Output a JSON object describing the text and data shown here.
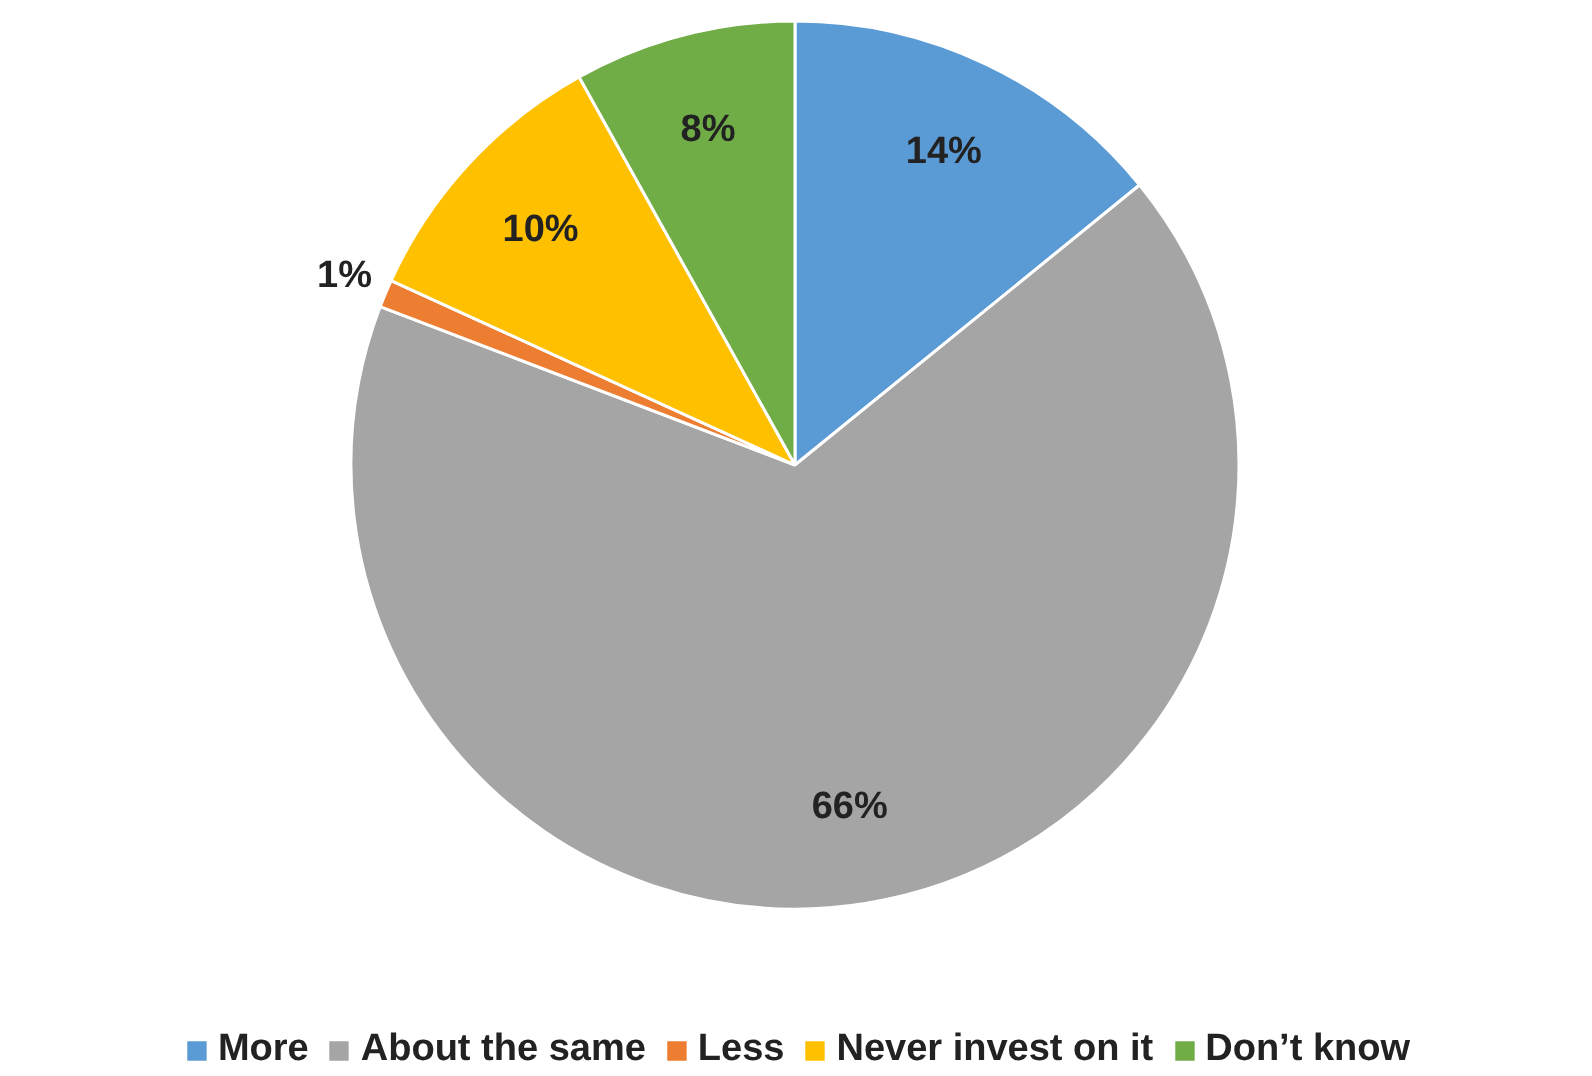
{
  "chart_data": {
    "type": "pie",
    "categories": [
      "More",
      "About the same",
      "Less",
      "Never invest on it",
      "Don’t know"
    ],
    "values": [
      14,
      66,
      1,
      10,
      8
    ],
    "value_labels": [
      "14%",
      "66%",
      "1%",
      "10%",
      "8%"
    ],
    "colors": [
      "#5b9bd5",
      "#a5a5a5",
      "#ed7d31",
      "#ffc000",
      "#70ad47"
    ],
    "legend": "bottom"
  }
}
